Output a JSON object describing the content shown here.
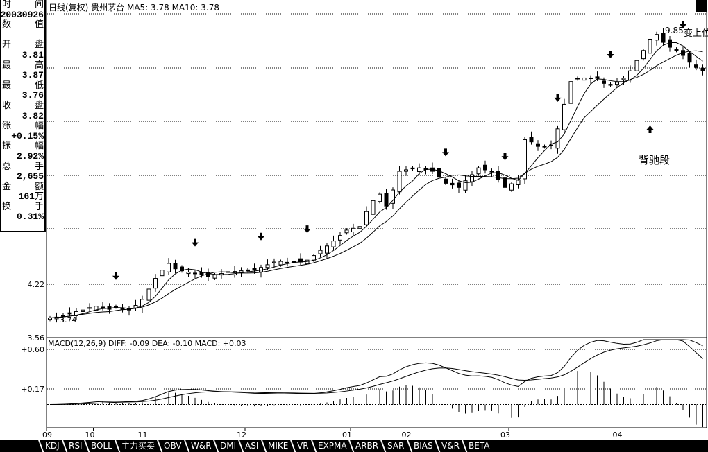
{
  "header": {
    "title": "日线(复权)  贵州茅台  MA5: 3.78  MA10: 3.78"
  },
  "info_panel": [
    [
      "时",
      "间"
    ],
    [
      "20030926",
      ""
    ],
    [
      "数",
      "值"
    ],
    [
      "",
      ""
    ],
    [
      "开",
      "盘"
    ],
    [
      "3.81",
      ""
    ],
    [
      "最",
      "高"
    ],
    [
      "3.87",
      ""
    ],
    [
      "最",
      "低"
    ],
    [
      "3.76",
      ""
    ],
    [
      "收",
      "盘"
    ],
    [
      "3.82",
      ""
    ],
    [
      "涨",
      "幅"
    ],
    [
      "+0.15%",
      ""
    ],
    [
      "振",
      "幅"
    ],
    [
      "2.92%",
      ""
    ],
    [
      "总",
      "手"
    ],
    [
      "2,655",
      ""
    ],
    [
      "金",
      "额"
    ],
    [
      "161",
      "万"
    ],
    [
      "换",
      "手"
    ],
    [
      "0.31%",
      ""
    ]
  ],
  "macd_title": "MACD(12,26,9) DIFF: -0.09 DEA: -0.10 MACD: +0.03",
  "annotations": {
    "peak_label": "9.85",
    "peak_note": "变上位变",
    "low_label": "3.74",
    "divergence": "背驰段"
  },
  "tabs": [
    "KDJ",
    "RSI",
    "BOLL",
    "主力买卖",
    "OBV",
    "W&R",
    "DMI",
    "ASI",
    "MIKE",
    "VR",
    "EXPMA",
    "ARBR",
    "SAR",
    "BIAS",
    "V&R",
    "BETA"
  ],
  "chart_data": [
    {
      "type": "candlestick",
      "title": "日线(复权) 贵州茅台",
      "yscale": "log",
      "ylim": [
        3.56,
        9.85
      ],
      "yticks": [
        "4.22",
        "3.56"
      ],
      "grid": true,
      "series_names": [
        "MA5",
        "MA10"
      ],
      "closes": [
        3.8,
        3.81,
        3.83,
        3.85,
        3.88,
        3.9,
        3.93,
        3.95,
        3.93,
        3.91,
        3.94,
        3.92,
        3.9,
        3.96,
        4.04,
        4.18,
        4.33,
        4.45,
        4.55,
        4.47,
        4.44,
        4.42,
        4.4,
        4.38,
        4.36,
        4.38,
        4.4,
        4.42,
        4.43,
        4.44,
        4.44,
        4.45,
        4.49,
        4.53,
        4.57,
        4.58,
        4.56,
        4.58,
        4.57,
        4.6,
        4.67,
        4.75,
        4.82,
        4.9,
        4.99,
        5.08,
        5.11,
        5.14,
        5.4,
        5.6,
        5.72,
        5.5,
        5.8,
        6.17,
        6.2,
        6.22,
        6.24,
        6.22,
        6.17,
        6.05,
        5.93,
        5.9,
        5.85,
        5.98,
        6.1,
        6.24,
        6.2,
        6.17,
        6.0,
        5.85,
        5.92,
        6.0,
        6.85,
        6.8,
        6.7,
        6.69,
        6.72,
        7.1,
        7.7,
        8.3,
        8.39,
        8.4,
        8.38,
        8.39,
        8.25,
        8.2,
        8.28,
        8.39,
        8.6,
        8.9,
        9.2,
        9.55,
        9.7,
        9.45,
        9.3,
        9.2,
        9.05,
        8.85,
        8.7,
        8.6
      ],
      "months": [
        {
          "label": "09",
          "index": 0
        },
        {
          "label": "10",
          "index": 7
        },
        {
          "label": "11",
          "index": 15
        },
        {
          "label": "12",
          "index": 30
        },
        {
          "label": "01",
          "index": 46
        },
        {
          "label": "02",
          "index": 55
        },
        {
          "label": "03",
          "index": 70
        },
        {
          "label": "04",
          "index": 87
        }
      ],
      "down_arrows": [
        10,
        22,
        32,
        39,
        60,
        69,
        77,
        85,
        96
      ],
      "up_arrows": [
        91
      ]
    },
    {
      "type": "line",
      "title": "MACD(12,26,9)",
      "yticks": [
        "+0.60",
        "+0.17"
      ],
      "series_names": [
        "DIFF",
        "DEA",
        "MACD"
      ]
    }
  ]
}
